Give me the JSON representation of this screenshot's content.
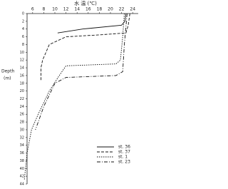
{
  "chart_data": {
    "type": "line",
    "title": "水 温 (℃)",
    "ylabel": [
      "Depth",
      "(m)"
    ],
    "xlim": [
      5,
      25
    ],
    "xticks": [
      6,
      8,
      10,
      12,
      14,
      16,
      18,
      20,
      22,
      24
    ],
    "ylim": [
      0,
      44
    ],
    "yticks": [
      0,
      2,
      4,
      6,
      8,
      10,
      12,
      14,
      16,
      18,
      20,
      22,
      24,
      26,
      28,
      30,
      32,
      34,
      36,
      38,
      40,
      42,
      44
    ],
    "series": [
      {
        "name": "st. 36",
        "color": "#111",
        "dash": "none",
        "x": [
          22.8,
          22.6,
          22,
          15,
          10.5
        ],
        "y": [
          0,
          2,
          3,
          4,
          5
        ]
      },
      {
        "name": "st. 37",
        "color": "#111",
        "dash": "4,2",
        "x": [
          23.5,
          23.2,
          22.8,
          18,
          12,
          9,
          7.8,
          7.5,
          7.5
        ],
        "y": [
          0,
          3,
          5,
          5.5,
          6,
          8,
          12,
          14,
          17.5
        ]
      },
      {
        "name": "st. 1",
        "color": "#111",
        "dash": "1.5,1.5",
        "x": [
          22.5,
          22.2,
          21.8,
          21,
          12,
          10.8,
          9,
          7,
          5.8,
          5,
          4.5
        ],
        "y": [
          0,
          6,
          12,
          13,
          13.5,
          16,
          20,
          26,
          30,
          36,
          43
        ]
      },
      {
        "name": "st. 23",
        "color": "#111",
        "dash": "5,2,1,2",
        "x": [
          23,
          22.5,
          22.2,
          21,
          12,
          10,
          8,
          6.5
        ],
        "y": [
          0,
          8,
          15,
          16,
          16.5,
          18,
          24,
          30
        ]
      }
    ]
  }
}
